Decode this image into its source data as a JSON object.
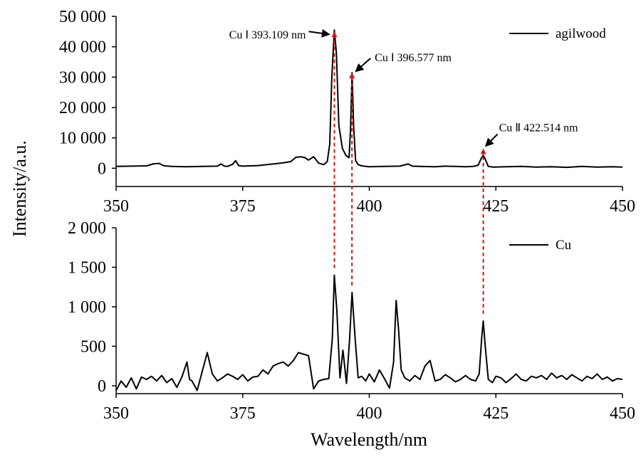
{
  "chart_data": [
    {
      "type": "line",
      "panel": "top",
      "legend_position": "top-right",
      "x_axis": {
        "min": 350,
        "max": 450,
        "ticks": [
          350,
          375,
          400,
          425,
          450
        ],
        "tick_labels": [
          "350",
          "375",
          "400",
          "425",
          "450"
        ]
      },
      "y_axis": {
        "min": -6000,
        "max": 50000,
        "ticks": [
          0,
          10000,
          20000,
          30000,
          40000,
          50000
        ],
        "tick_labels": [
          "0",
          "10 000",
          "20 000",
          "30 000",
          "40 000",
          "50 000"
        ]
      },
      "series": [
        {
          "name": "agilwood",
          "color": "#000000",
          "x": [
            350,
            353,
            356,
            357.5,
            358.5,
            359.5,
            361,
            364,
            367,
            370,
            370.7,
            371.4,
            372,
            373,
            373.6,
            374.2,
            375,
            378,
            381,
            383,
            384.5,
            385.5,
            386.5,
            387.3,
            388,
            389,
            390,
            391,
            391.7,
            392.2,
            392.6,
            393.1,
            393.5,
            394,
            394.7,
            395.4,
            396,
            396.3,
            396.6,
            396.9,
            397.3,
            397.8,
            398.5,
            400,
            403,
            406,
            407.7,
            408.5,
            410,
            413,
            415,
            417,
            419,
            420.5,
            421.5,
            422.1,
            422.5,
            422.9,
            423.5,
            424.5,
            427,
            430,
            433,
            436,
            439,
            442,
            445,
            448,
            450
          ],
          "y": [
            600,
            700,
            800,
            1500,
            1600,
            800,
            600,
            500,
            600,
            700,
            1400,
            700,
            600,
            1300,
            2500,
            900,
            700,
            900,
            1400,
            1800,
            2200,
            3600,
            3800,
            3500,
            2700,
            3800,
            1700,
            1200,
            2200,
            8000,
            30000,
            45500,
            38000,
            14000,
            6500,
            4200,
            3500,
            13000,
            31500,
            14000,
            2500,
            1200,
            800,
            500,
            600,
            700,
            1400,
            700,
            600,
            500,
            700,
            600,
            500,
            600,
            1000,
            3200,
            4300,
            3000,
            600,
            400,
            500,
            600,
            400,
            500,
            300,
            600,
            400,
            500,
            400
          ]
        }
      ],
      "annotations": [
        {
          "text": "Cu Ⅰ 393.109 nm",
          "x": 393.109,
          "y": 45500
        },
        {
          "text": "Cu Ⅰ 396.577 nm",
          "x": 396.577,
          "y": 32000
        },
        {
          "text": "Cu Ⅱ 422.514 nm",
          "x": 422.514,
          "y": 7000
        }
      ]
    },
    {
      "type": "line",
      "panel": "bottom",
      "legend_position": "top-right",
      "x_axis": {
        "min": 350,
        "max": 450,
        "ticks": [
          350,
          375,
          400,
          425,
          450
        ],
        "tick_labels": [
          "350",
          "375",
          "400",
          "425",
          "450"
        ]
      },
      "y_axis": {
        "min": -100,
        "max": 2000,
        "ticks": [
          0,
          500,
          1000,
          1500,
          2000
        ],
        "tick_labels": [
          "0",
          "500",
          "1 000",
          "1 500",
          "2 000"
        ]
      },
      "series": [
        {
          "name": "Cu",
          "color": "#000000",
          "x": [
            350,
            351,
            352,
            353,
            354,
            355,
            356,
            357,
            358,
            359,
            360,
            361,
            362,
            363,
            364,
            364.5,
            365,
            366,
            367,
            368,
            369,
            370,
            371,
            372,
            373,
            374,
            375,
            376,
            377,
            378,
            379,
            380,
            381,
            382,
            383,
            384,
            385,
            386,
            387,
            388,
            389,
            390,
            391,
            392,
            392.7,
            393.1,
            393.6,
            394.2,
            394.8,
            395.5,
            396.1,
            396.6,
            397.2,
            397.8,
            398.5,
            399.3,
            400,
            401,
            402,
            403,
            404,
            404.8,
            405.3,
            405.8,
            406.3,
            407,
            408,
            409,
            410,
            411,
            412,
            413,
            414,
            415,
            416,
            417,
            418,
            419,
            420,
            421,
            421.7,
            422.2,
            422.5,
            422.9,
            423.5,
            424.3,
            425,
            426,
            427,
            428,
            429,
            430,
            431,
            432,
            433,
            434,
            435,
            436,
            437,
            438,
            439,
            440,
            441,
            442,
            443,
            444,
            445,
            446,
            447,
            448,
            449,
            450
          ],
          "y": [
            -60,
            60,
            -20,
            100,
            -40,
            110,
            80,
            120,
            60,
            130,
            40,
            90,
            -20,
            110,
            300,
            80,
            60,
            -60,
            180,
            420,
            150,
            60,
            100,
            150,
            120,
            80,
            140,
            60,
            110,
            120,
            200,
            150,
            250,
            280,
            300,
            250,
            320,
            420,
            400,
            380,
            -40,
            60,
            80,
            90,
            600,
            1400,
            950,
            100,
            450,
            30,
            580,
            1180,
            600,
            100,
            120,
            60,
            150,
            50,
            200,
            90,
            -30,
            300,
            1080,
            700,
            200,
            100,
            60,
            130,
            80,
            250,
            320,
            60,
            80,
            140,
            100,
            50,
            80,
            130,
            80,
            60,
            150,
            600,
            820,
            500,
            80,
            40,
            120,
            100,
            40,
            90,
            150,
            80,
            60,
            120,
            100,
            130,
            80,
            160,
            100,
            130,
            80,
            140,
            100,
            60,
            120,
            90,
            150,
            80,
            110,
            60,
            90,
            80
          ]
        }
      ]
    }
  ],
  "y_title": "Intensity/a.u.",
  "x_title": "Wavelength/nm"
}
